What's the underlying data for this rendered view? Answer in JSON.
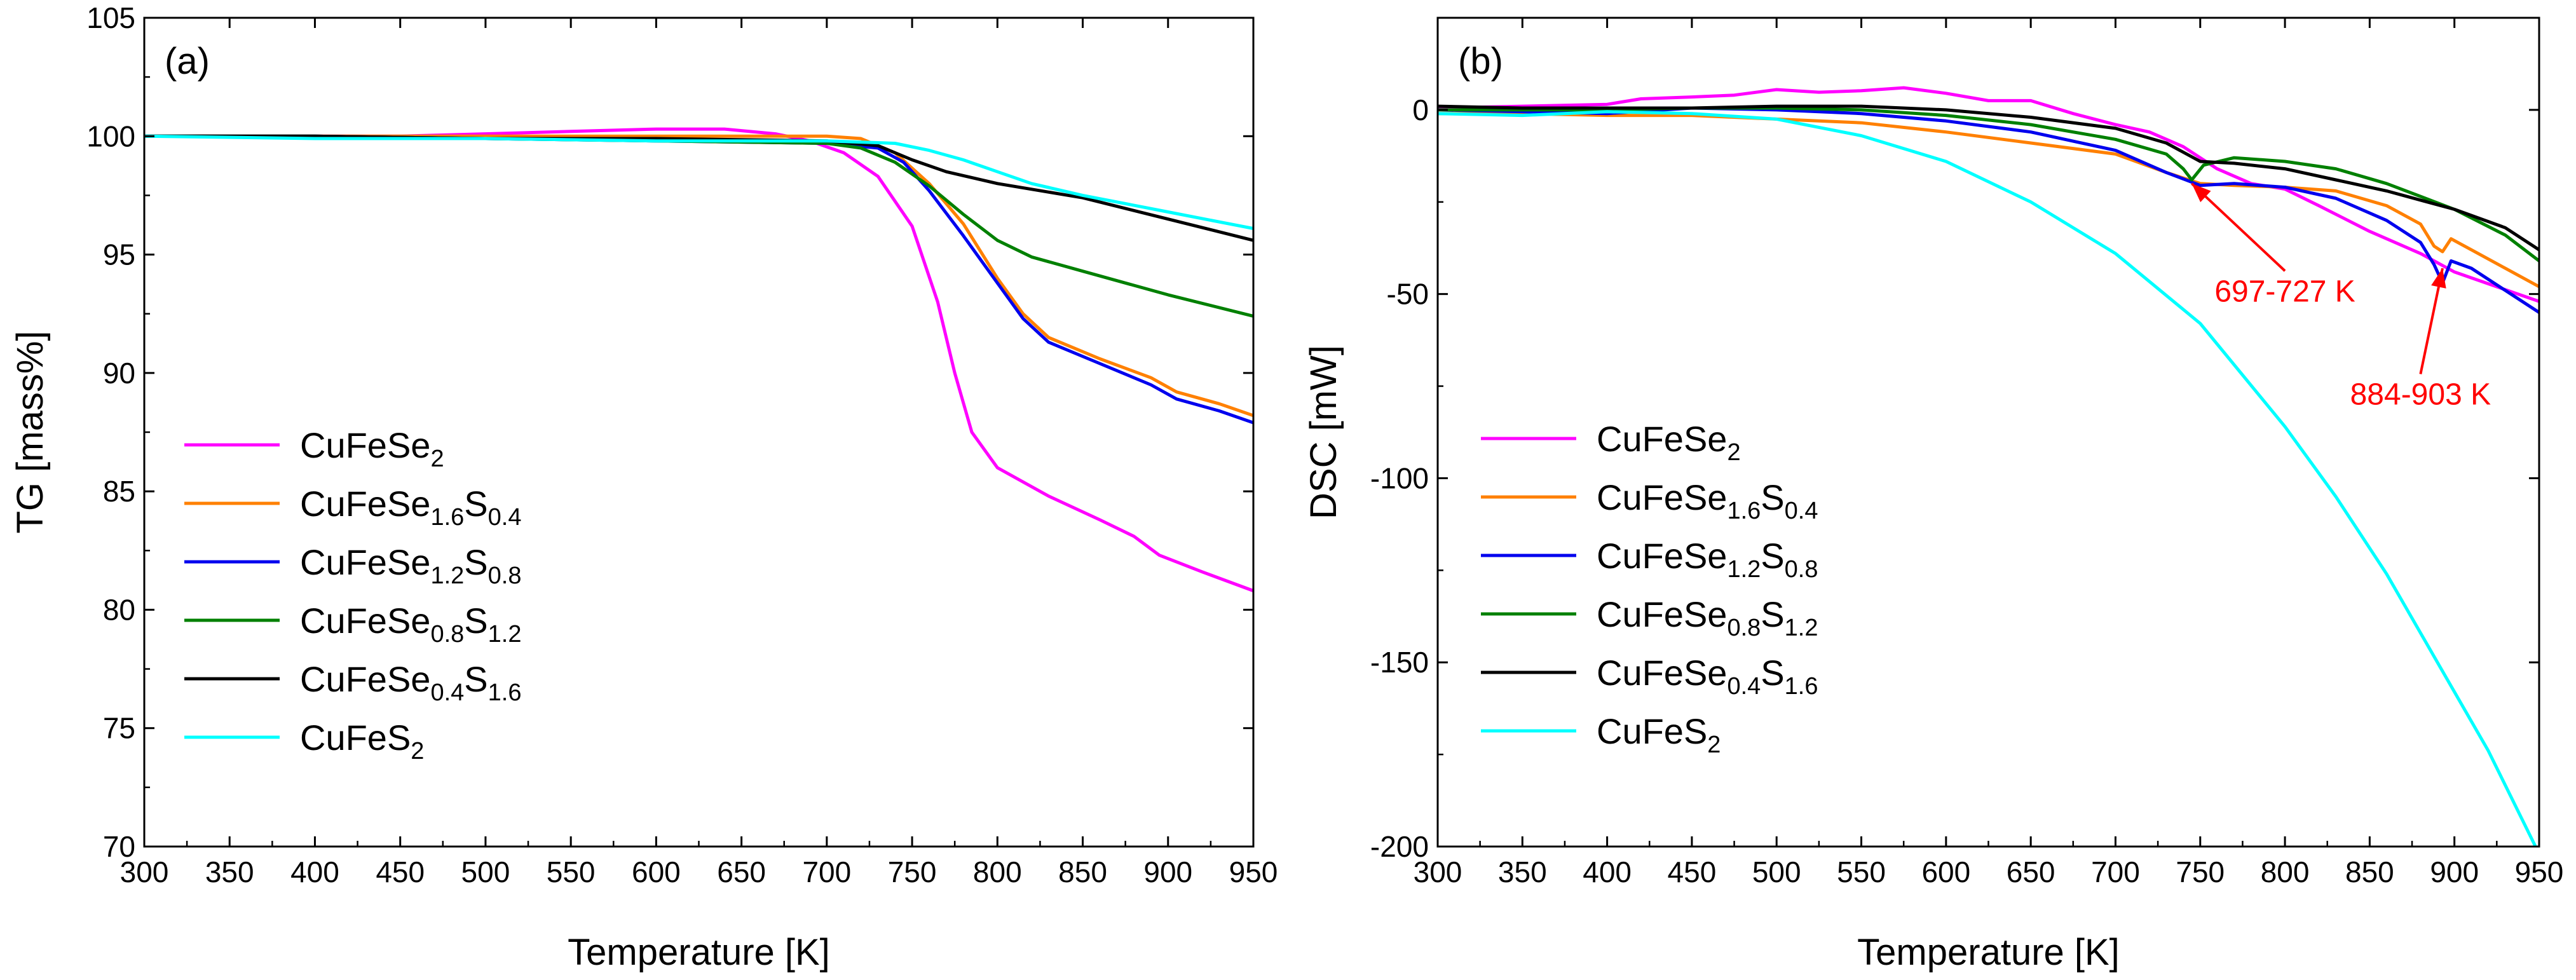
{
  "chart_data": [
    {
      "type": "line",
      "panel_label": "(a)",
      "xlabel": "Temperature [K]",
      "ylabel": "TG [mass%]",
      "xlim": [
        300,
        950
      ],
      "ylim": [
        70,
        105
      ],
      "xticks": [
        300,
        350,
        400,
        450,
        500,
        550,
        600,
        650,
        700,
        750,
        800,
        850,
        900,
        950
      ],
      "yticks": [
        70,
        75,
        80,
        85,
        90,
        95,
        100,
        105
      ],
      "grid": false,
      "legend_position": "bottom-left",
      "series": [
        {
          "name": "CuFeSe2",
          "color": "#ff00ff",
          "points": [
            [
              300,
              100.0
            ],
            [
              350,
              100.0
            ],
            [
              400,
              100.0
            ],
            [
              450,
              100.0
            ],
            [
              500,
              100.1
            ],
            [
              550,
              100.2
            ],
            [
              600,
              100.3
            ],
            [
              640,
              100.3
            ],
            [
              670,
              100.1
            ],
            [
              690,
              99.8
            ],
            [
              710,
              99.3
            ],
            [
              730,
              98.3
            ],
            [
              750,
              96.2
            ],
            [
              765,
              93.0
            ],
            [
              775,
              90.0
            ],
            [
              785,
              87.5
            ],
            [
              800,
              86.0
            ],
            [
              830,
              84.8
            ],
            [
              860,
              83.8
            ],
            [
              880,
              83.1
            ],
            [
              895,
              82.3
            ],
            [
              920,
              81.6
            ],
            [
              950,
              80.8
            ]
          ]
        },
        {
          "name": "CuFeSe1.6S0.4",
          "color": "#ff8000",
          "points": [
            [
              300,
              100.0
            ],
            [
              400,
              100.0
            ],
            [
              500,
              100.0
            ],
            [
              600,
              100.0
            ],
            [
              700,
              100.0
            ],
            [
              720,
              99.9
            ],
            [
              740,
              99.3
            ],
            [
              760,
              98.0
            ],
            [
              780,
              96.3
            ],
            [
              800,
              94.0
            ],
            [
              815,
              92.5
            ],
            [
              830,
              91.5
            ],
            [
              860,
              90.6
            ],
            [
              890,
              89.8
            ],
            [
              905,
              89.2
            ],
            [
              930,
              88.7
            ],
            [
              950,
              88.2
            ]
          ]
        },
        {
          "name": "CuFeSe1.2S0.8",
          "color": "#0000ee",
          "points": [
            [
              300,
              100.0
            ],
            [
              400,
              100.0
            ],
            [
              500,
              99.9
            ],
            [
              600,
              99.8
            ],
            [
              700,
              99.7
            ],
            [
              730,
              99.5
            ],
            [
              745,
              98.9
            ],
            [
              760,
              97.7
            ],
            [
              780,
              95.8
            ],
            [
              800,
              93.8
            ],
            [
              815,
              92.3
            ],
            [
              830,
              91.3
            ],
            [
              860,
              90.4
            ],
            [
              890,
              89.5
            ],
            [
              905,
              88.9
            ],
            [
              930,
              88.4
            ],
            [
              950,
              87.9
            ]
          ]
        },
        {
          "name": "CuFeSe0.8S1.2",
          "color": "#008000",
          "points": [
            [
              300,
              100.0
            ],
            [
              400,
              100.0
            ],
            [
              500,
              99.9
            ],
            [
              600,
              99.8
            ],
            [
              700,
              99.7
            ],
            [
              720,
              99.5
            ],
            [
              740,
              98.9
            ],
            [
              760,
              97.9
            ],
            [
              780,
              96.7
            ],
            [
              800,
              95.6
            ],
            [
              820,
              94.9
            ],
            [
              850,
              94.3
            ],
            [
              900,
              93.3
            ],
            [
              950,
              92.4
            ]
          ]
        },
        {
          "name": "CuFeSe0.4S1.6",
          "color": "#000000",
          "points": [
            [
              300,
              100.0
            ],
            [
              400,
              100.0
            ],
            [
              500,
              99.9
            ],
            [
              600,
              99.9
            ],
            [
              700,
              99.8
            ],
            [
              730,
              99.6
            ],
            [
              750,
              99.0
            ],
            [
              770,
              98.5
            ],
            [
              800,
              98.0
            ],
            [
              850,
              97.4
            ],
            [
              900,
              96.5
            ],
            [
              950,
              95.6
            ]
          ]
        },
        {
          "name": "CuFeS2",
          "color": "#00ffff",
          "points": [
            [
              300,
              100.0
            ],
            [
              400,
              99.9
            ],
            [
              500,
              99.9
            ],
            [
              600,
              99.8
            ],
            [
              700,
              99.8
            ],
            [
              740,
              99.7
            ],
            [
              760,
              99.4
            ],
            [
              780,
              99.0
            ],
            [
              800,
              98.5
            ],
            [
              820,
              98.0
            ],
            [
              850,
              97.5
            ],
            [
              900,
              96.8
            ],
            [
              950,
              96.1
            ]
          ]
        }
      ]
    },
    {
      "type": "line",
      "panel_label": "(b)",
      "xlabel": "Temperature [K]",
      "ylabel": "DSC [mW]",
      "xlim": [
        300,
        950
      ],
      "ylim": [
        -200,
        25
      ],
      "xticks": [
        300,
        350,
        400,
        450,
        500,
        550,
        600,
        650,
        700,
        750,
        800,
        850,
        900,
        950
      ],
      "yticks": [
        -200,
        -150,
        -100,
        -50,
        0
      ],
      "grid": false,
      "legend_position": "middle-left",
      "annotations": [
        {
          "text": "697-727 K",
          "color": "#ff0000",
          "point": [
            745,
            -20
          ],
          "label_at": [
            800,
            -52
          ]
        },
        {
          "text": "884-903 K",
          "color": "#ff0000",
          "point": [
            893,
            -43
          ],
          "label_at": [
            880,
            -80
          ]
        }
      ],
      "series": [
        {
          "name": "CuFeSe2",
          "color": "#ff00ff",
          "points": [
            [
              300,
              0.5
            ],
            [
              350,
              1.0
            ],
            [
              400,
              1.5
            ],
            [
              420,
              3.0
            ],
            [
              450,
              3.5
            ],
            [
              475,
              4.0
            ],
            [
              500,
              5.5
            ],
            [
              525,
              4.8
            ],
            [
              550,
              5.2
            ],
            [
              575,
              6.0
            ],
            [
              600,
              4.5
            ],
            [
              625,
              2.5
            ],
            [
              650,
              2.5
            ],
            [
              675,
              -1.0
            ],
            [
              700,
              -4.0
            ],
            [
              720,
              -6.0
            ],
            [
              740,
              -10.0
            ],
            [
              760,
              -16.0
            ],
            [
              780,
              -20.0
            ],
            [
              800,
              -21.5
            ],
            [
              820,
              -26.0
            ],
            [
              850,
              -33.0
            ],
            [
              880,
              -39.0
            ],
            [
              900,
              -44.0
            ],
            [
              925,
              -48.0
            ],
            [
              950,
              -52.0
            ]
          ]
        },
        {
          "name": "CuFeSe1.6S0.4",
          "color": "#ff8000",
          "points": [
            [
              300,
              -1.0
            ],
            [
              350,
              -1.0
            ],
            [
              400,
              -1.5
            ],
            [
              450,
              -1.5
            ],
            [
              500,
              -2.5
            ],
            [
              550,
              -3.5
            ],
            [
              600,
              -6.0
            ],
            [
              650,
              -9.0
            ],
            [
              700,
              -12.0
            ],
            [
              730,
              -17.0
            ],
            [
              750,
              -20.0
            ],
            [
              770,
              -20.5
            ],
            [
              800,
              -21.0
            ],
            [
              830,
              -22.0
            ],
            [
              860,
              -26.0
            ],
            [
              880,
              -31.0
            ],
            [
              888,
              -37.0
            ],
            [
              893,
              -38.5
            ],
            [
              898,
              -35.0
            ],
            [
              910,
              -38.0
            ],
            [
              930,
              -43.0
            ],
            [
              950,
              -48.0
            ]
          ]
        },
        {
          "name": "CuFeSe1.2S0.8",
          "color": "#0000ee",
          "points": [
            [
              300,
              0.0
            ],
            [
              350,
              -0.5
            ],
            [
              400,
              -1.0
            ],
            [
              450,
              0.5
            ],
            [
              500,
              0.0
            ],
            [
              550,
              -1.0
            ],
            [
              600,
              -3.0
            ],
            [
              650,
              -6.0
            ],
            [
              700,
              -11.0
            ],
            [
              730,
              -17.0
            ],
            [
              750,
              -20.5
            ],
            [
              770,
              -20.0
            ],
            [
              800,
              -21.0
            ],
            [
              830,
              -24.0
            ],
            [
              860,
              -30.0
            ],
            [
              880,
              -36.0
            ],
            [
              888,
              -42.0
            ],
            [
              893,
              -47.0
            ],
            [
              898,
              -41.0
            ],
            [
              910,
              -43.0
            ],
            [
              930,
              -49.0
            ],
            [
              950,
              -55.0
            ]
          ]
        },
        {
          "name": "CuFeSe0.8S1.2",
          "color": "#008000",
          "points": [
            [
              300,
              0.0
            ],
            [
              350,
              0.0
            ],
            [
              400,
              0.0
            ],
            [
              450,
              0.5
            ],
            [
              500,
              0.5
            ],
            [
              550,
              0.0
            ],
            [
              600,
              -1.5
            ],
            [
              650,
              -4.0
            ],
            [
              700,
              -8.0
            ],
            [
              730,
              -12.0
            ],
            [
              740,
              -16.0
            ],
            [
              745,
              -19.0
            ],
            [
              752,
              -15.0
            ],
            [
              770,
              -13.0
            ],
            [
              800,
              -14.0
            ],
            [
              830,
              -16.0
            ],
            [
              860,
              -20.0
            ],
            [
              900,
              -27.0
            ],
            [
              930,
              -34.0
            ],
            [
              950,
              -41.0
            ]
          ]
        },
        {
          "name": "CuFeSe0.4S1.6",
          "color": "#000000",
          "points": [
            [
              300,
              1.0
            ],
            [
              350,
              0.5
            ],
            [
              400,
              0.5
            ],
            [
              450,
              0.5
            ],
            [
              500,
              1.0
            ],
            [
              550,
              1.0
            ],
            [
              600,
              0.0
            ],
            [
              650,
              -2.0
            ],
            [
              700,
              -5.0
            ],
            [
              730,
              -9.0
            ],
            [
              750,
              -14.0
            ],
            [
              770,
              -14.5
            ],
            [
              800,
              -16.0
            ],
            [
              830,
              -19.0
            ],
            [
              860,
              -22.0
            ],
            [
              900,
              -27.0
            ],
            [
              930,
              -32.0
            ],
            [
              950,
              -38.0
            ]
          ]
        },
        {
          "name": "CuFeS2",
          "color": "#00ffff",
          "points": [
            [
              300,
              -1.0
            ],
            [
              350,
              -1.5
            ],
            [
              400,
              -0.5
            ],
            [
              450,
              -1.0
            ],
            [
              500,
              -2.5
            ],
            [
              550,
              -7.0
            ],
            [
              600,
              -14.0
            ],
            [
              650,
              -25.0
            ],
            [
              700,
              -39.0
            ],
            [
              750,
              -58.0
            ],
            [
              800,
              -86.0
            ],
            [
              830,
              -105.0
            ],
            [
              860,
              -126.0
            ],
            [
              890,
              -150.0
            ],
            [
              920,
              -174.0
            ],
            [
              950,
              -202.0
            ]
          ]
        }
      ]
    }
  ],
  "legend": {
    "items": [
      {
        "base": "CuFeSe",
        "sub1": "2",
        "mid": "",
        "sub2": ""
      },
      {
        "base": "CuFeSe",
        "sub1": "1.6",
        "mid": "S",
        "sub2": "0.4"
      },
      {
        "base": "CuFeSe",
        "sub1": "1.2",
        "mid": "S",
        "sub2": "0.8"
      },
      {
        "base": "CuFeSe",
        "sub1": "0.8",
        "mid": "S",
        "sub2": "1.2"
      },
      {
        "base": "CuFeSe",
        "sub1": "0.4",
        "mid": "S",
        "sub2": "1.6"
      },
      {
        "base": "CuFeS",
        "sub1": "2",
        "mid": "",
        "sub2": ""
      }
    ]
  }
}
